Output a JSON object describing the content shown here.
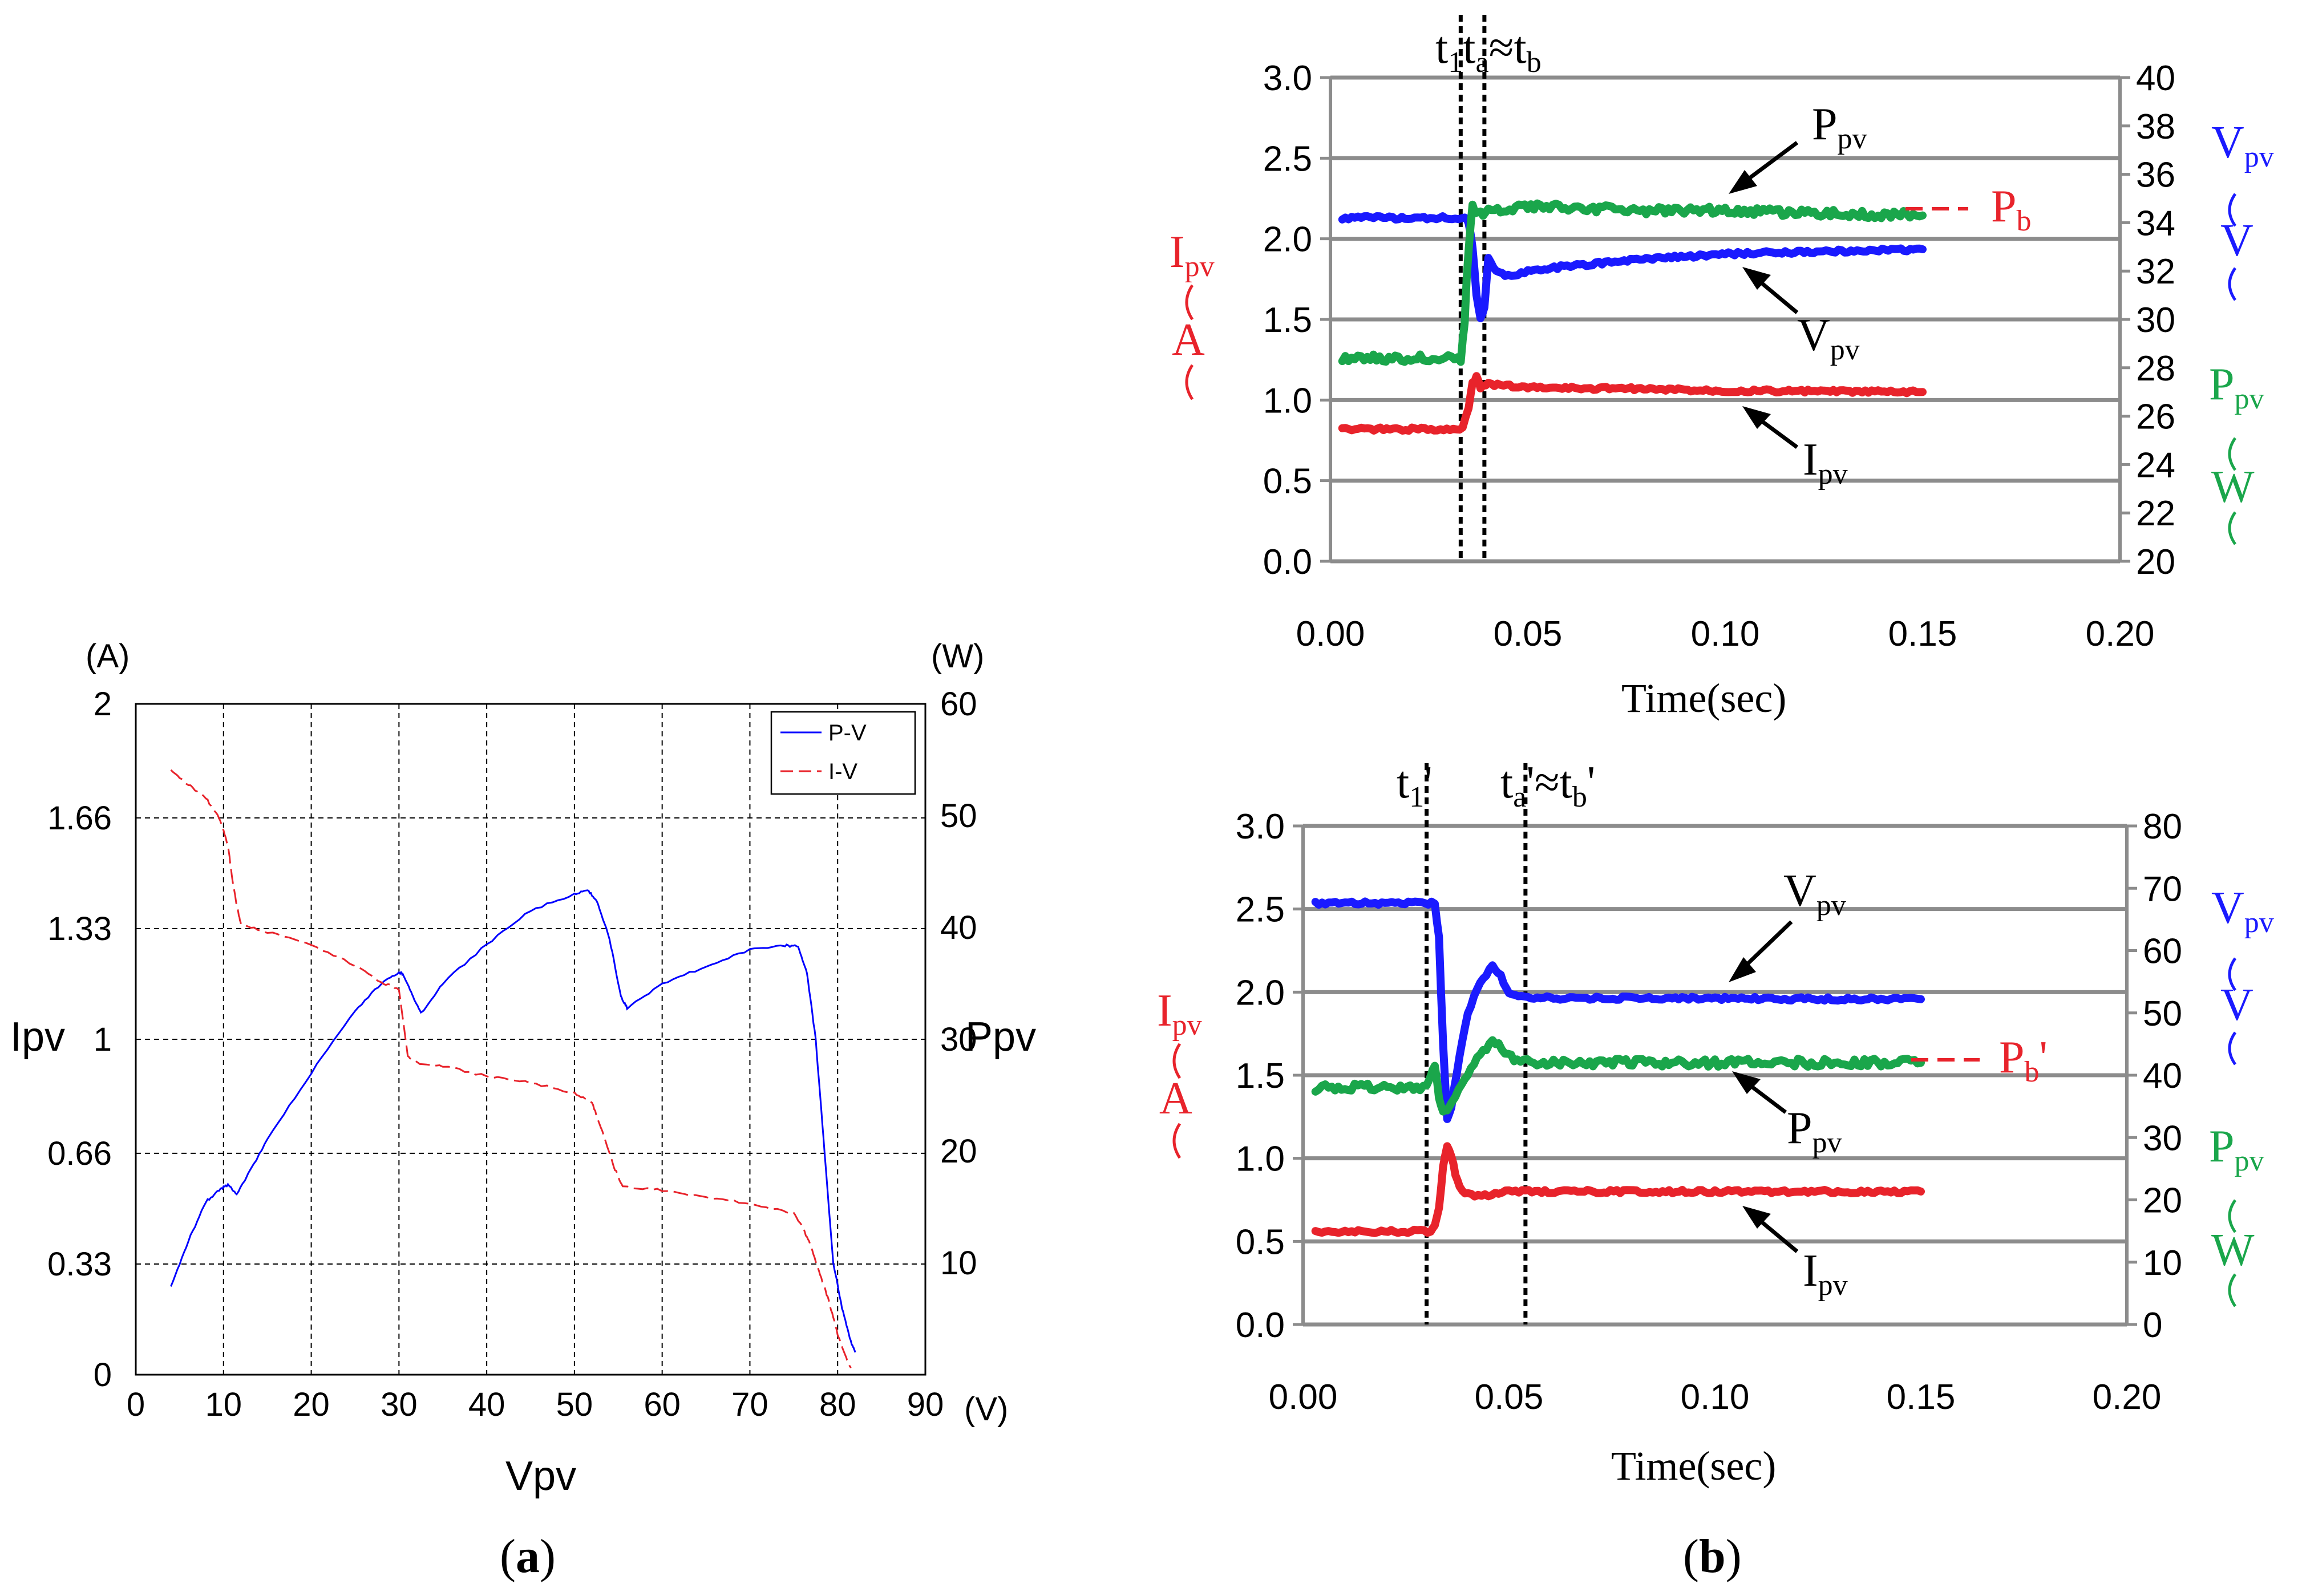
{
  "panel_labels": {
    "a": "a",
    "b": "b"
  },
  "chart_data": [
    {
      "id": "a",
      "type": "line",
      "xlabel": "Vpv",
      "ylabel_left": "Ipv",
      "ylabel_right": "Ppv",
      "left_unit": "(A)",
      "right_unit": "(W)",
      "x_unit": "(V)",
      "xlim": [
        0,
        90
      ],
      "ylim_left": [
        0,
        2
      ],
      "ylim_right": [
        0,
        60
      ],
      "x_ticks": [
        "0",
        "10",
        "20",
        "30",
        "40",
        "50",
        "60",
        "70",
        "80",
        "90"
      ],
      "y_ticks_left": [
        "0",
        "0.33",
        "0.66",
        "1",
        "1.33",
        "1.66",
        "2"
      ],
      "y_ticks_right": [
        "10",
        "20",
        "30",
        "40",
        "50",
        "60"
      ],
      "grid": true,
      "legend_position": "top-right",
      "series": [
        {
          "name": "P-V",
          "axis": "right",
          "color": "#0000ff",
          "x": [
            4,
            6,
            8,
            9.5,
            10.5,
            11.5,
            12.5,
            15,
            20,
            25,
            28,
            30,
            30.5,
            31.5,
            32.5,
            35,
            40,
            45,
            50,
            51.5,
            52.5,
            54,
            55.3,
            56,
            60,
            65,
            70,
            74,
            75.5,
            76.5,
            77.5,
            78.5,
            79.5,
            80.5,
            81.5,
            82
          ],
          "y": [
            7.8,
            12,
            15.5,
            16.5,
            17,
            16.2,
            17.5,
            21,
            27,
            32.5,
            35,
            36,
            35.8,
            34,
            32.3,
            35,
            38.5,
            41.5,
            43,
            43.3,
            42.5,
            39,
            33.8,
            32.8,
            35,
            36.5,
            38,
            38.4,
            38.3,
            36,
            30,
            20,
            10,
            6,
            3,
            2
          ]
        },
        {
          "name": "I-V",
          "axis": "left",
          "color": "#e8232b",
          "x": [
            4,
            6,
            8,
            9.5,
            10.5,
            11,
            11.5,
            12,
            15,
            20,
            25,
            28,
            30,
            31,
            32,
            35,
            40,
            45,
            50,
            52,
            53,
            54.5,
            55.5,
            60,
            65,
            70,
            75,
            76,
            77,
            78,
            79,
            80,
            81,
            81.5
          ],
          "y": [
            1.8,
            1.76,
            1.72,
            1.66,
            1.58,
            1.48,
            1.4,
            1.34,
            1.32,
            1.28,
            1.22,
            1.17,
            1.15,
            0.95,
            0.93,
            0.92,
            0.89,
            0.87,
            0.84,
            0.81,
            0.74,
            0.62,
            0.56,
            0.55,
            0.53,
            0.51,
            0.48,
            0.44,
            0.38,
            0.3,
            0.22,
            0.12,
            0.05,
            0.02
          ]
        }
      ]
    },
    {
      "id": "b-top",
      "type": "line",
      "xlabel": "Time(sec)",
      "xlim": [
        0,
        0.2
      ],
      "ylim_left": [
        0,
        3
      ],
      "ylim_right": [
        20,
        40
      ],
      "x_ticks": [
        "0.00",
        "0.05",
        "0.10",
        "0.15",
        "0.20"
      ],
      "y_ticks_left": [
        "0.0",
        "0.5",
        "1.0",
        "1.5",
        "2.0",
        "2.5",
        "3.0"
      ],
      "y_ticks_right": [
        "20",
        "22",
        "24",
        "26",
        "28",
        "30",
        "32",
        "34",
        "36",
        "38",
        "40"
      ],
      "grid": true,
      "vlines": [
        0.033,
        0.039
      ],
      "series": [
        {
          "name": "Ipv",
          "axis": "left",
          "color": "#e8232b",
          "x": [
            0.003,
            0.0335,
            0.035,
            0.036,
            0.037,
            0.038,
            0.04,
            0.05,
            0.1,
            0.15
          ],
          "y": [
            0.82,
            0.82,
            0.95,
            1.1,
            1.14,
            1.08,
            1.1,
            1.08,
            1.06,
            1.05
          ]
        },
        {
          "name": "Vpv",
          "axis": "right",
          "color": "#1a1aff",
          "x": [
            0.003,
            0.034,
            0.035,
            0.036,
            0.037,
            0.038,
            0.039,
            0.04,
            0.042,
            0.045,
            0.05,
            0.06,
            0.08,
            0.1,
            0.12,
            0.15
          ],
          "y": [
            34.2,
            34.2,
            34.0,
            33.0,
            31.0,
            30.0,
            30.5,
            32.5,
            32.0,
            31.8,
            32.0,
            32.2,
            32.5,
            32.7,
            32.8,
            32.9
          ]
        },
        {
          "name": "Ppv",
          "axis": "right",
          "color": "#1aa64b",
          "x": [
            0.003,
            0.033,
            0.034,
            0.035,
            0.036,
            0.038,
            0.04,
            0.05,
            0.08,
            0.1,
            0.15
          ],
          "y": [
            28.4,
            28.4,
            30,
            33,
            34.6,
            34.4,
            34.5,
            34.7,
            34.5,
            34.5,
            34.3
          ]
        }
      ]
    },
    {
      "id": "b-bottom",
      "type": "line",
      "xlabel": "Time(sec)",
      "xlim": [
        0,
        0.2
      ],
      "ylim_left": [
        0,
        3
      ],
      "ylim_right": [
        0,
        80
      ],
      "x_ticks": [
        "0.00",
        "0.05",
        "0.10",
        "0.15",
        "0.20"
      ],
      "y_ticks_left": [
        "0.0",
        "0.5",
        "1.0",
        "1.5",
        "2.0",
        "2.5",
        "3.0"
      ],
      "y_ticks_right": [
        "0",
        "10",
        "20",
        "30",
        "40",
        "50",
        "60",
        "70",
        "80"
      ],
      "grid": true,
      "vlines": [
        0.03,
        0.054
      ],
      "series": [
        {
          "name": "Ipv",
          "axis": "left",
          "color": "#e8232b",
          "x": [
            0.003,
            0.031,
            0.032,
            0.033,
            0.034,
            0.035,
            0.036,
            0.037,
            0.038,
            0.04,
            0.045,
            0.05,
            0.1,
            0.15
          ],
          "y": [
            0.56,
            0.56,
            0.6,
            0.7,
            0.95,
            1.08,
            1.02,
            0.9,
            0.82,
            0.78,
            0.78,
            0.8,
            0.8,
            0.8
          ]
        },
        {
          "name": "Vpv",
          "axis": "right",
          "color": "#1a1aff",
          "x": [
            0.003,
            0.032,
            0.033,
            0.034,
            0.035,
            0.036,
            0.038,
            0.04,
            0.043,
            0.046,
            0.048,
            0.05,
            0.053,
            0.06,
            0.1,
            0.15
          ],
          "y": [
            67.6,
            67.6,
            62,
            45,
            33,
            35,
            43,
            50,
            55,
            57.5,
            56,
            53,
            52.5,
            52.4,
            52.3,
            52.2
          ]
        },
        {
          "name": "Ppv",
          "axis": "right",
          "color": "#1aa64b",
          "x": [
            0.003,
            0.03,
            0.031,
            0.032,
            0.033,
            0.034,
            0.035,
            0.037,
            0.04,
            0.043,
            0.046,
            0.049,
            0.052,
            0.06,
            0.1,
            0.15
          ],
          "y": [
            38,
            38,
            40,
            41.5,
            36,
            34,
            34.5,
            37,
            40,
            43,
            45,
            44,
            42,
            42,
            42,
            42
          ]
        }
      ]
    }
  ],
  "annotations_b_top": {
    "t1": "t",
    "t1_sub": "1",
    "ta": "t",
    "ta_sub": "a",
    "approx": "≈",
    "tb": "t",
    "tb_sub": "b",
    "ppv_main": "P",
    "ppv_sub": "pv",
    "vpv_main": "V",
    "vpv_sub": "pv",
    "ipv_main": "I",
    "ipv_sub": "pv",
    "pb_main": "P",
    "pb_sub": "b",
    "left_label_main": "I",
    "left_label_sub": "pv",
    "left_unit": "A",
    "right_v_main": "V",
    "right_v_sub": "pv",
    "right_v_unit": "V",
    "right_p_main": "P",
    "right_p_sub": "pv",
    "right_p_unit": "W"
  },
  "annotations_b_bottom": {
    "t1": "t",
    "t1_sub": "1",
    "t1_prime": "'",
    "ta": "t",
    "ta_sub": "a",
    "ta_prime": "'",
    "approx": "≈",
    "tb": "t",
    "tb_sub": "b",
    "tb_prime": "'",
    "vpv_main": "V",
    "vpv_sub": "pv",
    "ppv_main": "P",
    "ppv_sub": "pv",
    "ipv_main": "I",
    "ipv_sub": "pv",
    "pb_main": "P",
    "pb_sub": "b",
    "pb_prime": "'",
    "left_label_main": "I",
    "left_label_sub": "pv",
    "left_unit": "A",
    "right_v_main": "V",
    "right_v_sub": "pv",
    "right_v_unit": "V",
    "right_p_main": "P",
    "right_p_sub": "pv",
    "right_p_unit": "W"
  },
  "colors": {
    "red": "#e8232b",
    "blue": "#1a1aff",
    "green": "#1aa64b",
    "grid_b": "#8c8c8c"
  }
}
